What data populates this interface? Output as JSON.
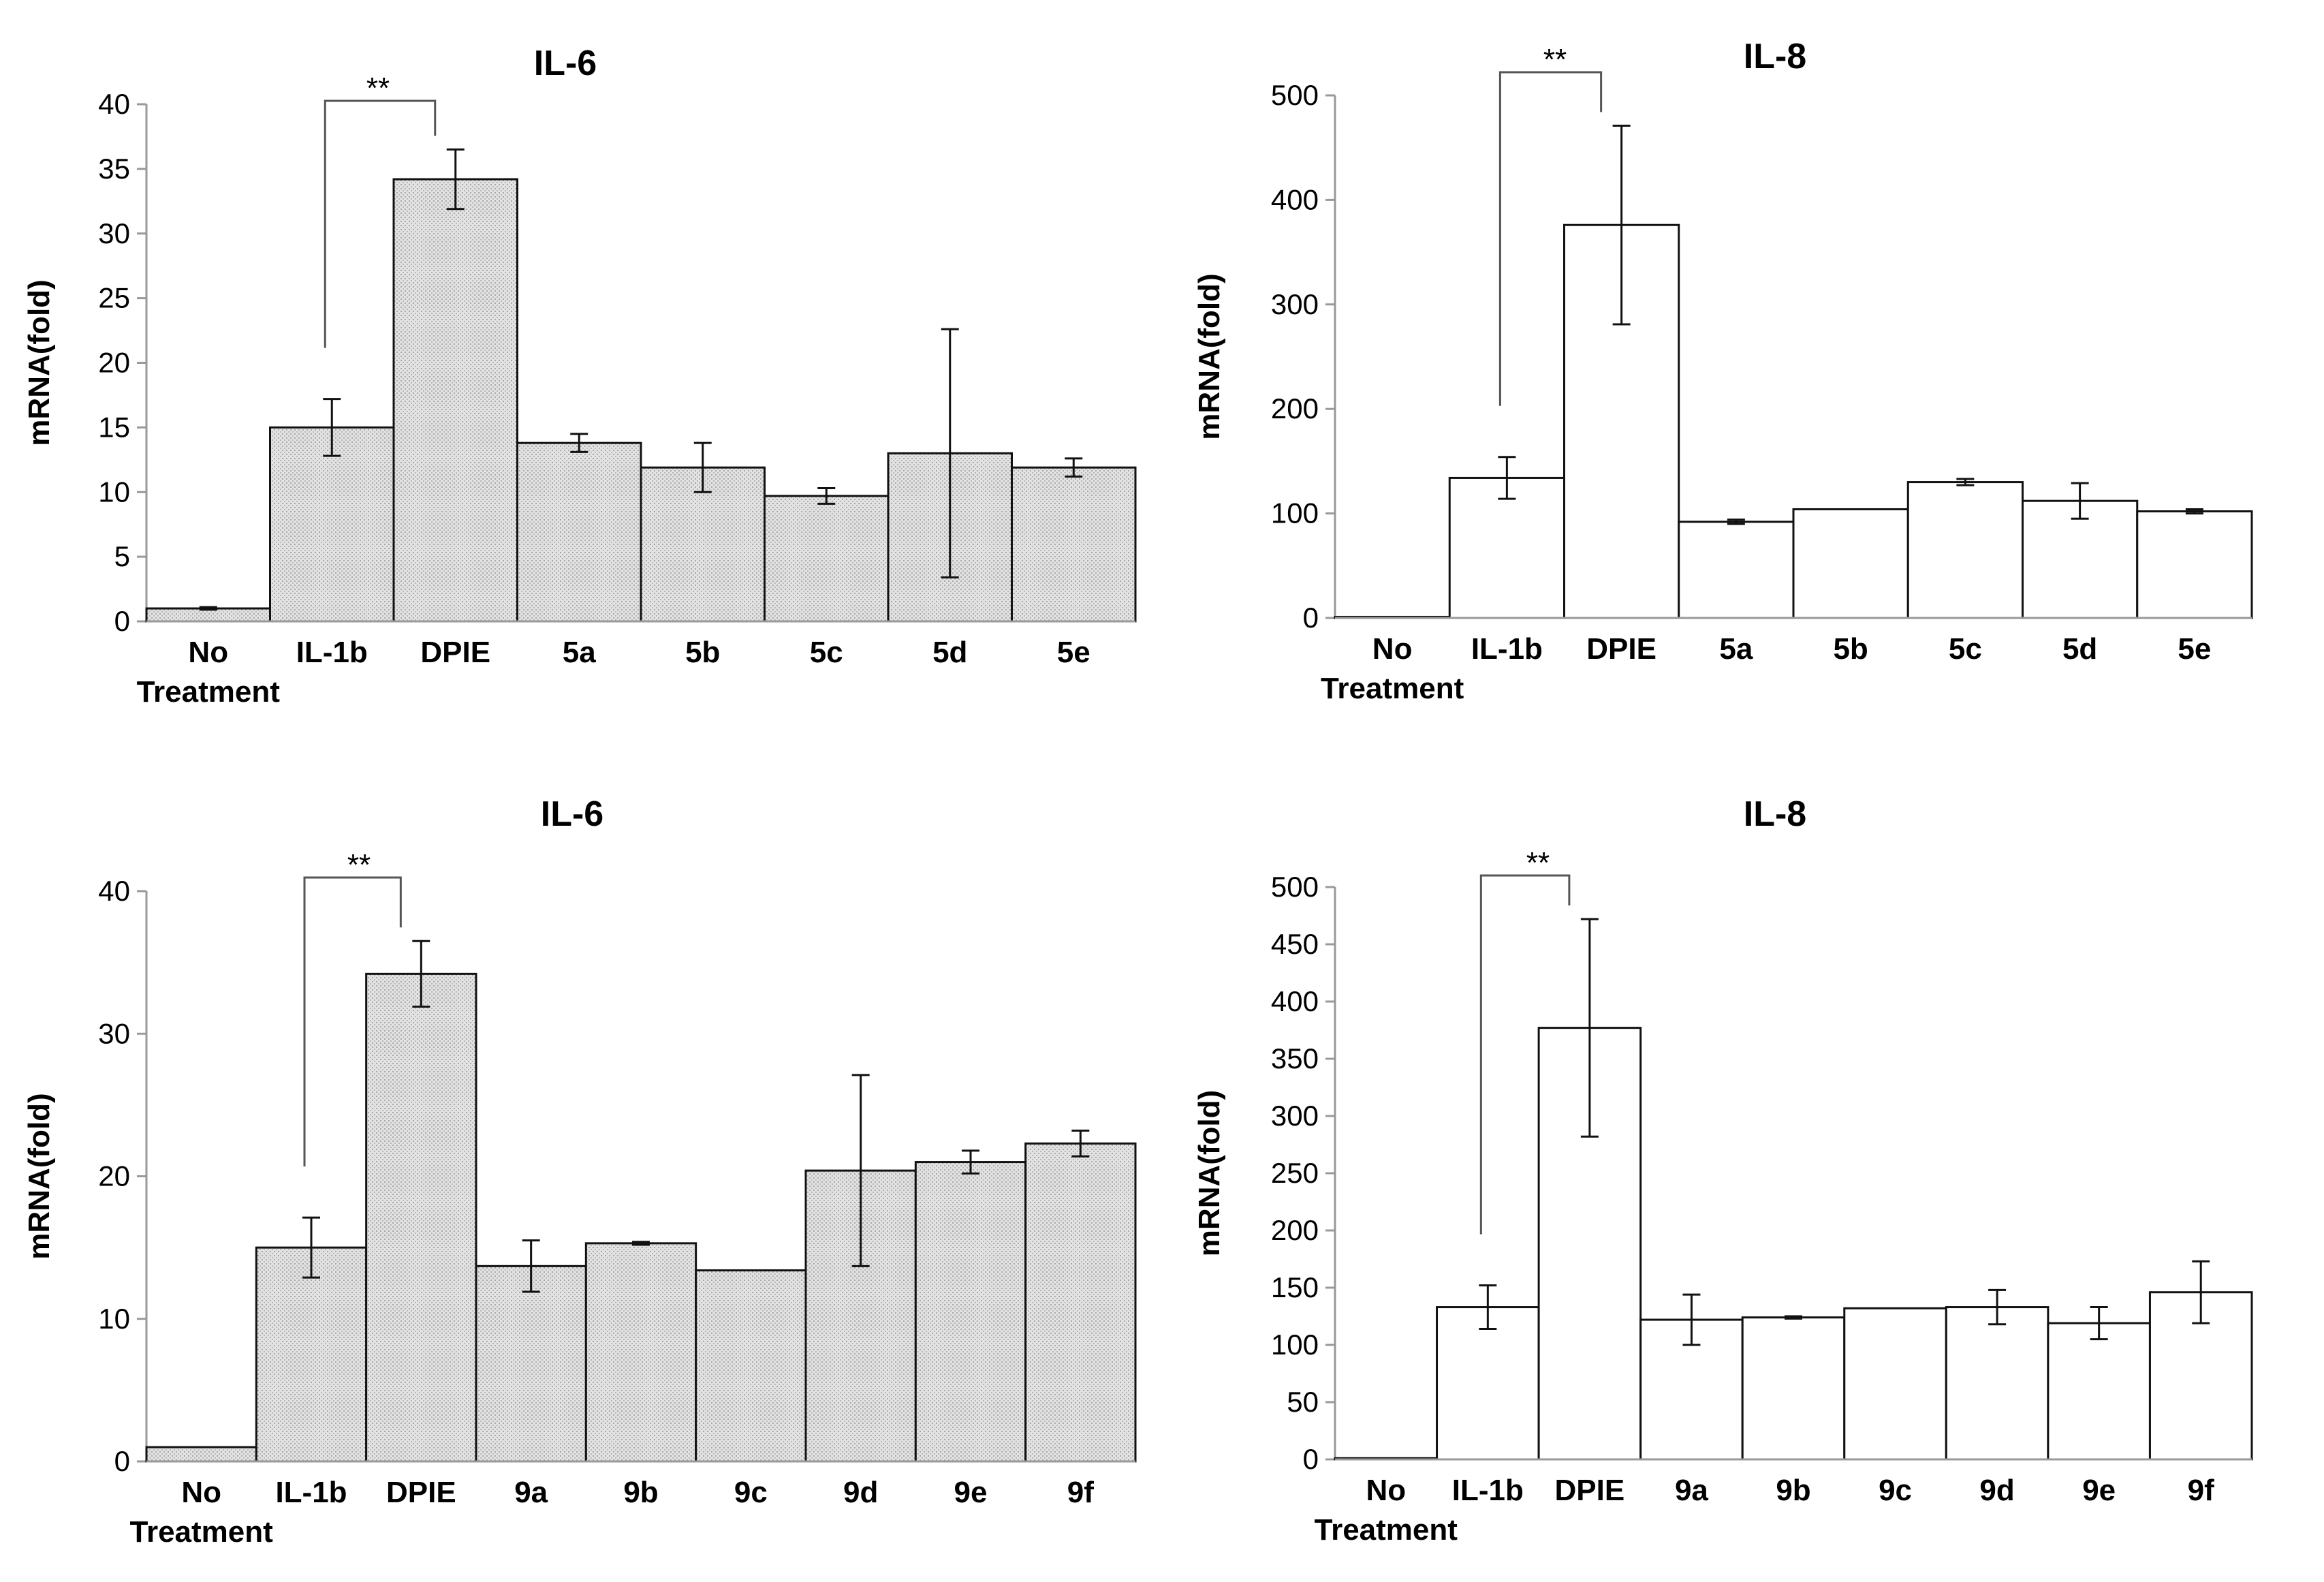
{
  "chart_data": [
    {
      "type": "bar",
      "title": "IL-6",
      "ylabel": "mRNA(fold)",
      "xlabel": "",
      "ylim": [
        0,
        40
      ],
      "yticks": [
        0,
        5,
        10,
        15,
        20,
        25,
        30,
        35,
        40
      ],
      "categories": [
        "No\nTreatment",
        "IL-1b",
        "DPIE",
        "5a",
        "5b",
        "5c",
        "5d",
        "5e"
      ],
      "values": [
        1.0,
        15.0,
        34.2,
        13.8,
        11.9,
        9.7,
        13.0,
        11.9
      ],
      "errors": [
        0.1,
        2.2,
        2.3,
        0.7,
        1.9,
        0.6,
        9.6,
        0.7
      ],
      "bar_fill": "#d9d9d9",
      "significance": {
        "from": "IL-1b",
        "to": "DPIE",
        "label": "**"
      }
    },
    {
      "type": "bar",
      "title": "IL-8",
      "ylabel": "mRNA(fold)",
      "xlabel": "",
      "ylim": [
        0,
        500
      ],
      "yticks": [
        0,
        100,
        200,
        300,
        400,
        500
      ],
      "categories": [
        "No\nTreatment",
        "IL-1b",
        "DPIE",
        "5a",
        "5b",
        "5c",
        "5d",
        "5e"
      ],
      "values": [
        1,
        134,
        376,
        92,
        104,
        130,
        112,
        102
      ],
      "errors": [
        0,
        20,
        95,
        2,
        0,
        3,
        17,
        2
      ],
      "bar_fill": "#ffffff",
      "significance": {
        "from": "IL-1b",
        "to": "DPIE",
        "label": "**"
      }
    },
    {
      "type": "bar",
      "title": "IL-6",
      "ylabel": "mRNA(fold)",
      "xlabel": "",
      "ylim": [
        0,
        40
      ],
      "yticks": [
        0,
        10,
        20,
        30,
        40
      ],
      "categories": [
        "No\nTreatment",
        "IL-1b",
        "DPIE",
        "9a",
        "9b",
        "9c",
        "9d",
        "9e",
        "9f"
      ],
      "values": [
        1.0,
        15.0,
        34.2,
        13.7,
        15.3,
        13.4,
        20.4,
        21.0,
        22.3
      ],
      "errors": [
        0,
        2.1,
        2.3,
        1.8,
        0.1,
        0,
        6.7,
        0.8,
        0.9
      ],
      "bar_fill": "#d9d9d9",
      "significance": {
        "from": "IL-1b",
        "to": "DPIE",
        "label": "**"
      }
    },
    {
      "type": "bar",
      "title": "IL-8",
      "ylabel": "mRNA(fold)",
      "xlabel": "",
      "ylim": [
        0,
        500
      ],
      "yticks": [
        0,
        50,
        100,
        150,
        200,
        250,
        300,
        350,
        400,
        450,
        500
      ],
      "categories": [
        "No\nTreatment",
        "IL-1b",
        "DPIE",
        "9a",
        "9b",
        "9c",
        "9d",
        "9e",
        "9f"
      ],
      "values": [
        1,
        133,
        377,
        122,
        124,
        132,
        133,
        119,
        146
      ],
      "errors": [
        0,
        19,
        95,
        22,
        1,
        0,
        15,
        14,
        27
      ],
      "bar_fill": "#ffffff",
      "significance": {
        "from": "IL-1b",
        "to": "DPIE",
        "label": "**"
      }
    }
  ]
}
